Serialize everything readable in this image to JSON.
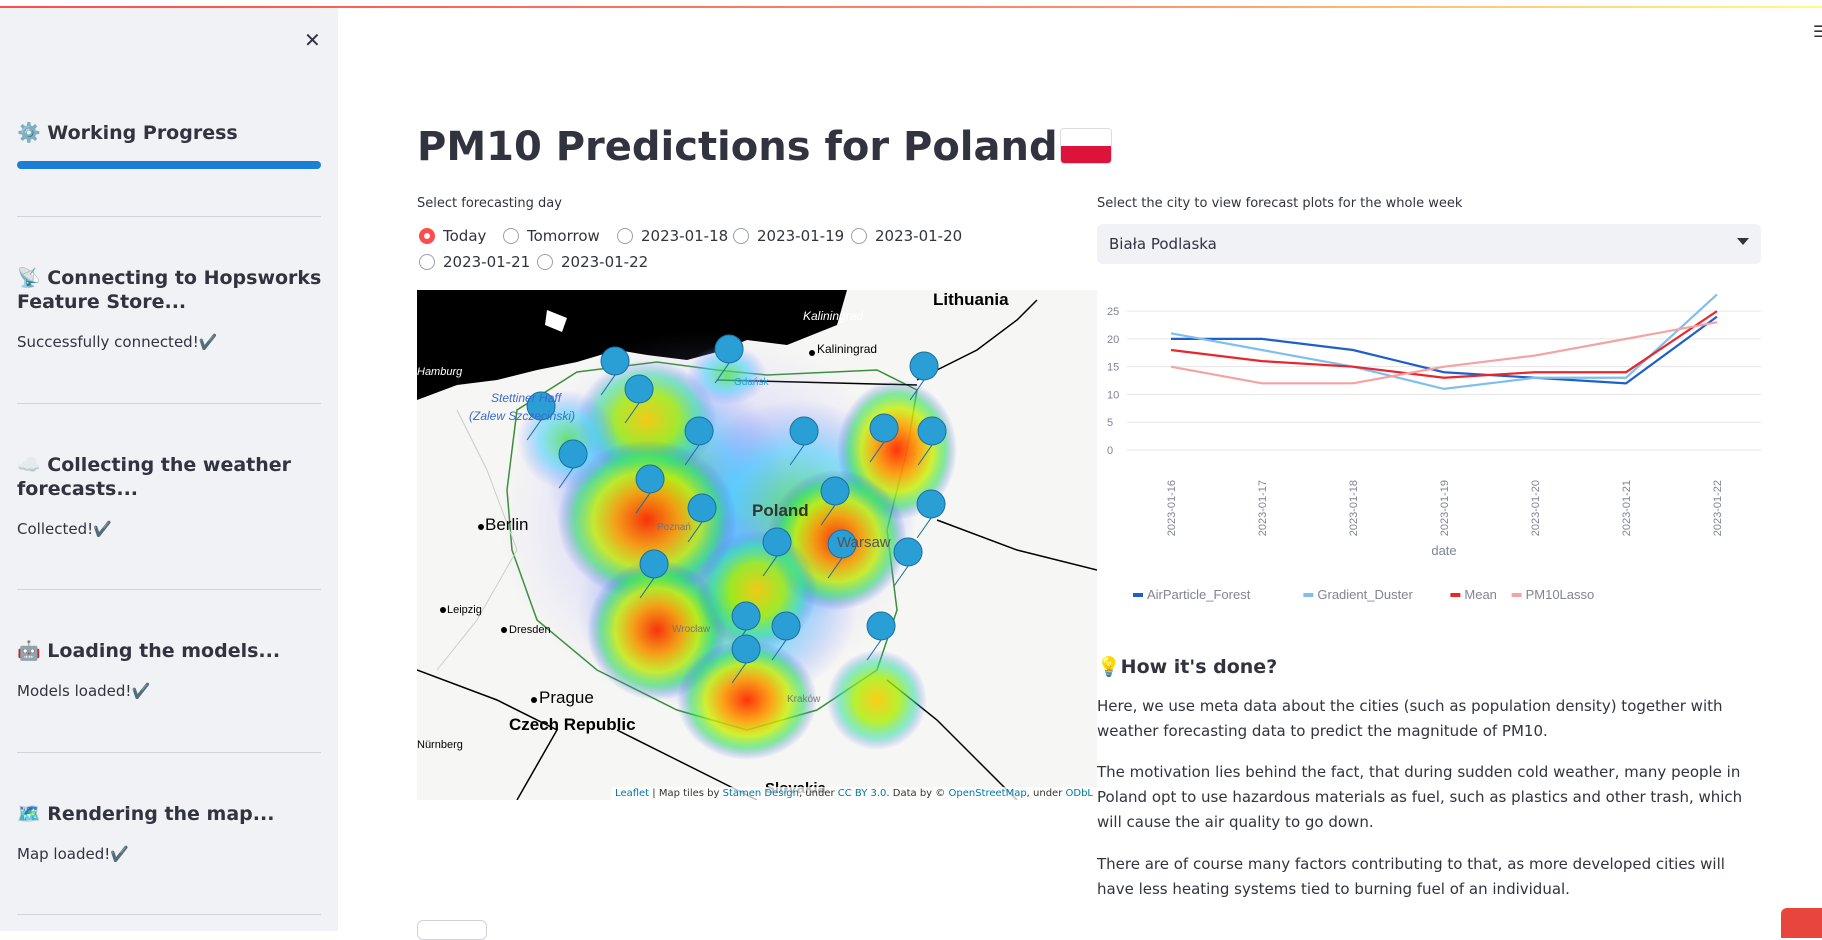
{
  "sidebar": {
    "steps": [
      {
        "icon": "⚙️",
        "title": "Working Progress",
        "status": ""
      },
      {
        "icon": "📡",
        "title": "Connecting to Hopsworks Feature Store...",
        "status": "Successfully connected!✔️"
      },
      {
        "icon": "☁️",
        "title": "Collecting the weather forecasts...",
        "status": "Collected!✔️"
      },
      {
        "icon": "🤖",
        "title": "Loading the models...",
        "status": "Models loaded!✔️"
      },
      {
        "icon": "🗺️",
        "title": "Rendering the map...",
        "status": "Map loaded!✔️"
      }
    ],
    "progress": 1.0
  },
  "main": {
    "title": "PM10 Predictions for Poland",
    "day_select": {
      "label": "Select forecasting day",
      "options": [
        "Today",
        "Tomorrow",
        "2023-01-18",
        "2023-01-19",
        "2023-01-20",
        "2023-01-21",
        "2023-01-22"
      ],
      "selected": "Today"
    },
    "city_select": {
      "label": "Select the city to view forecast plots for the whole week",
      "value": "Biała Podlaska"
    },
    "map": {
      "labels": [
        "Lithuania",
        "Kaliningrad",
        "Kaliningrad",
        "Gdańsk",
        "Berlin",
        "Poland",
        "Warsaw",
        "Leipzig",
        "Dresden",
        "Prague",
        "Czech Republic",
        "Slovakia",
        "Stettiner Haff",
        "(Zalew Szczeciński)",
        "Kraków",
        "Wrocław",
        "Poznań",
        "Hamburg",
        "Nürnberg"
      ],
      "attribution": {
        "leaflet": "Leaflet",
        "text1": " | Map tiles by ",
        "stamen": "Stamen Design",
        "text2": ", under ",
        "cc": "CC BY 3.0",
        "text3": ". Data by © ",
        "osm": "OpenStreetMap",
        "text4": ", under ",
        "odbl": "ODbL"
      }
    },
    "how": {
      "icon": "💡",
      "title": "How it's done?",
      "paragraphs": [
        "Here, we use meta data about the cities (such as population density) together with weather forecasting data to predict the magnitude of PM10.",
        "The motivation lies behind the fact, that during sudden cold weather, many people in Poland opt to use hazardous materials as fuel, such as plastics and other trash, which will cause the air quality to go down.",
        "There are of course many factors contributing to that, as more developed cities will have less heating systems tied to burning fuel of an individual."
      ]
    }
  },
  "colors": {
    "accent": "#ff4b4b",
    "progress": "#1c7fd7",
    "sidebar_bg": "#f0f2f6"
  },
  "chart_data": {
    "type": "line",
    "x": [
      "2023-01-16",
      "2023-01-17",
      "2023-01-18",
      "2023-01-19",
      "2023-01-20",
      "2023-01-21",
      "2023-01-22"
    ],
    "xlabel": "date",
    "ylabel": "",
    "ylim": [
      0,
      27
    ],
    "yticks": [
      0,
      5,
      10,
      15,
      20,
      25
    ],
    "legend_position": "bottom",
    "series": [
      {
        "name": "AirParticle_Forest",
        "color": "#1f5fc9",
        "values": [
          20,
          20,
          18,
          14,
          13,
          12,
          24
        ]
      },
      {
        "name": "Gradient_Duster",
        "color": "#7fbff0",
        "values": [
          21,
          18,
          15,
          11,
          13,
          13,
          28
        ]
      },
      {
        "name": "Mean",
        "color": "#e8262b",
        "values": [
          18,
          16,
          15,
          13,
          14,
          14,
          25
        ]
      },
      {
        "name": "PM10Lasso",
        "color": "#f4a3a3",
        "values": [
          15,
          12,
          12,
          15,
          17,
          20,
          23
        ]
      }
    ]
  }
}
